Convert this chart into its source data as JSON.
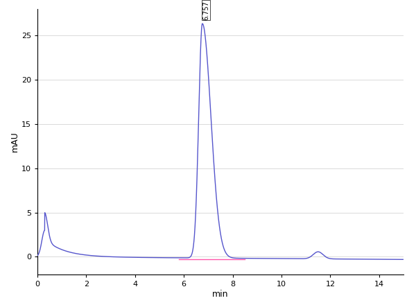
{
  "xlabel": "min",
  "ylabel": "mAU",
  "xlim": [
    0,
    15
  ],
  "ylim": [
    -2,
    28
  ],
  "yticks": [
    0,
    5,
    10,
    15,
    20,
    25
  ],
  "xticks": [
    0,
    2,
    4,
    6,
    8,
    10,
    12,
    14
  ],
  "peak_label": "6.757",
  "peak_x": 6.757,
  "peak_y": 26.5,
  "blue_color": "#5555cc",
  "pink_color": "#ff55aa",
  "bg_color": "#ffffff",
  "grid_color": "#cccccc"
}
